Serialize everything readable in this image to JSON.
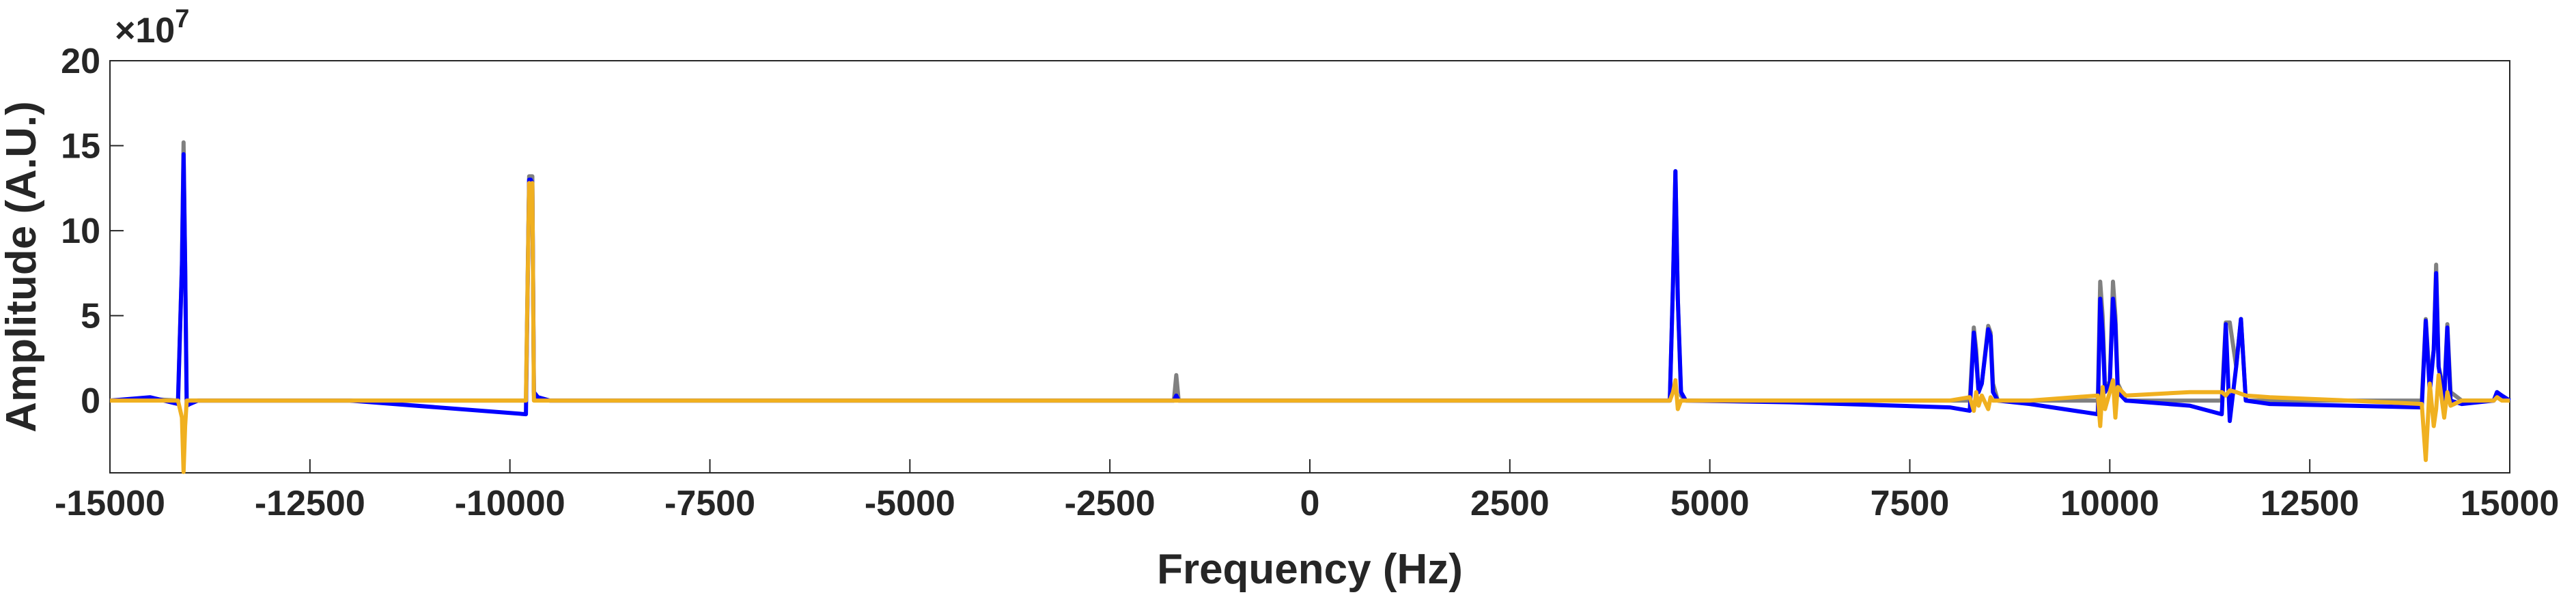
{
  "chart_data": {
    "type": "line",
    "x_label": "Frequency (Hz)",
    "y_label": "Amplitude (A.U.)",
    "y_multiplier_base": "×10",
    "y_multiplier_exponent": "7",
    "xlim": [
      -15000,
      15000
    ],
    "xticks": [
      -15000,
      -12500,
      -10000,
      -7500,
      -5000,
      -2500,
      0,
      2500,
      5000,
      7500,
      10000,
      12500,
      15000
    ],
    "ylim": [
      -4.25,
      20
    ],
    "yticks": [
      0,
      5,
      10,
      15,
      20
    ],
    "grid": false,
    "x": [
      -15000,
      -14500,
      -14150,
      -14100,
      -14080,
      -14060,
      -14040,
      -14000,
      -13900,
      -12000,
      -9800,
      -9760,
      -9740,
      -9720,
      -9700,
      -9650,
      -9500,
      -7000,
      -1700,
      -1670,
      -1640,
      0,
      4500,
      4540,
      4570,
      4600,
      4640,
      4700,
      6000,
      8000,
      8250,
      8300,
      8330,
      8360,
      8400,
      8480,
      8510,
      8540,
      8600,
      9000,
      9850,
      9880,
      9910,
      9940,
      10000,
      10040,
      10070,
      10100,
      10200,
      11000,
      11400,
      11450,
      11500,
      11580,
      11640,
      11700,
      12000,
      13000,
      13900,
      13950,
      14000,
      14050,
      14080,
      14110,
      14180,
      14220,
      14260,
      14400,
      14800,
      14840,
      14900,
      15000
    ],
    "series": [
      {
        "color": "#808080",
        "values": [
          0,
          0.1,
          0,
          8,
          15.2,
          8,
          0,
          0,
          0,
          0,
          0,
          13.2,
          13.2,
          13.2,
          0.3,
          0.1,
          0,
          0,
          0,
          1.5,
          0,
          0,
          0,
          7,
          13.5,
          6,
          0.3,
          0,
          0,
          0,
          0,
          4.3,
          3,
          0.5,
          1,
          4.4,
          4,
          1,
          0,
          0,
          0,
          7,
          5,
          1,
          1,
          7,
          5,
          1,
          0,
          0,
          0,
          4.6,
          4.6,
          2,
          4.8,
          0,
          0,
          0,
          0,
          4.8,
          1,
          3,
          8,
          2,
          0.5,
          4.5,
          0.5,
          0,
          0,
          0.5,
          0.3,
          0
        ]
      },
      {
        "color": "#0000ff",
        "values": [
          0,
          0.2,
          -0.2,
          8,
          14.5,
          8,
          -0.3,
          -0.2,
          0,
          0,
          -0.8,
          13,
          13,
          12.8,
          0.5,
          0.2,
          0,
          0,
          0,
          0.3,
          0,
          0,
          0,
          7,
          13.5,
          6,
          0.5,
          0,
          -0.1,
          -0.4,
          -0.6,
          4,
          2.5,
          0.5,
          1,
          4.2,
          3.8,
          0.5,
          0,
          -0.2,
          -0.8,
          6,
          4,
          0.5,
          1,
          6,
          4.5,
          0.5,
          0,
          -0.3,
          -0.8,
          4.5,
          -1.2,
          2,
          4.8,
          0,
          -0.2,
          -0.3,
          -0.4,
          4.7,
          0.5,
          3,
          7.5,
          2,
          0,
          4.3,
          0,
          -0.2,
          0,
          0.5,
          0.3,
          0
        ]
      },
      {
        "color": "#f0b020",
        "values": [
          0,
          0,
          0,
          -1,
          -4.2,
          -1.5,
          0,
          0,
          0,
          0,
          0,
          12.8,
          12.5,
          12.8,
          0,
          0,
          0,
          0,
          0,
          0,
          0,
          0,
          0,
          0.5,
          1.2,
          -0.5,
          0,
          0,
          0,
          0,
          0.2,
          -0.6,
          0.5,
          -0.3,
          0.3,
          -0.5,
          0.2,
          0,
          0,
          0,
          0.3,
          -1.5,
          0.8,
          -0.5,
          0.5,
          1.2,
          -1,
          0.8,
          0.3,
          0.5,
          0.5,
          0.3,
          0.6,
          0.5,
          0.4,
          0.3,
          0.2,
          0,
          -0.2,
          -3.5,
          1,
          -1.5,
          -0.5,
          1.5,
          -1,
          0.5,
          -0.3,
          0,
          0,
          0.2,
          0,
          0
        ]
      }
    ]
  }
}
